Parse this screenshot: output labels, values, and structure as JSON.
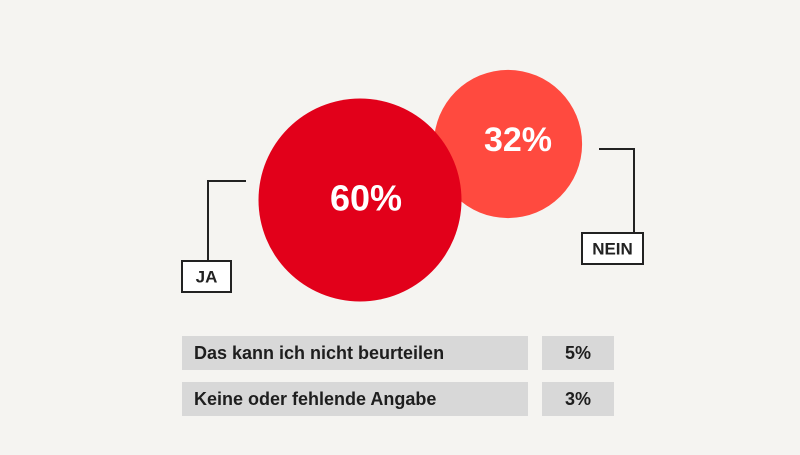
{
  "chart_data": {
    "type": "bubble",
    "series": [
      {
        "name": "JA",
        "value": 60,
        "value_label": "60%",
        "color": "#e2001a"
      },
      {
        "name": "NEIN",
        "value": 32,
        "value_label": "32%",
        "color": "#ff4a3f"
      }
    ],
    "other_answers": [
      {
        "label": "Das kann ich nicht beurteilen",
        "value": 5,
        "value_label": "5%"
      },
      {
        "label": "Keine oder fehlende Angabe",
        "value": 3,
        "value_label": "3%"
      }
    ]
  }
}
